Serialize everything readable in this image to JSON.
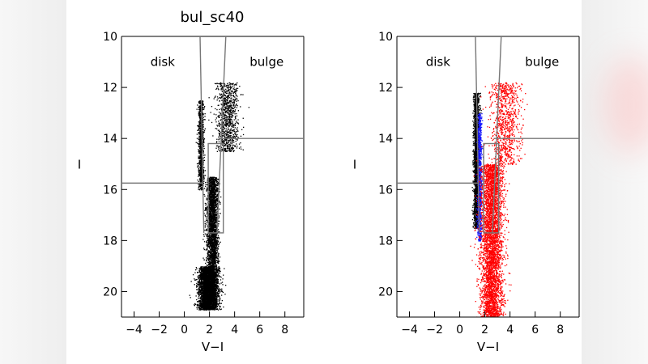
{
  "chart_data": [
    {
      "type": "scatter",
      "title": "bul_sc40",
      "xlabel": "V−I",
      "ylabel": "I",
      "xlim": [
        -5,
        9.5
      ],
      "ylim": [
        21,
        10
      ],
      "y_inverted": true,
      "xticks": [
        -4,
        -2,
        0,
        2,
        4,
        6,
        8
      ],
      "xtick_labels": [
        "−4",
        "−2",
        "0",
        "2",
        "4",
        "6",
        "8"
      ],
      "yticks": [
        10,
        12,
        14,
        16,
        18,
        20
      ],
      "ytick_labels": [
        "10",
        "12",
        "14",
        "16",
        "18",
        "20"
      ],
      "annotations": [
        {
          "text": "disk",
          "x": -2.7,
          "y": 11.0
        },
        {
          "text": "bulge",
          "x": 5.2,
          "y": 11.0
        }
      ],
      "series": [
        {
          "color": "#000000",
          "description_regions": [
            {
              "vi_center": 1.9,
              "vi_spread": 0.8,
              "I_range": [
                19.0,
                20.7
              ],
              "density": "very high"
            },
            {
              "vi_center": 2.2,
              "vi_spread": 0.5,
              "I_range": [
                15.5,
                19.0
              ],
              "density": "high"
            },
            {
              "vi_center": 1.3,
              "vi_spread": 0.25,
              "I_range": [
                12.5,
                16.0
              ],
              "density": "medium"
            },
            {
              "vi_center": 3.4,
              "vi_spread": 1.0,
              "I_range": [
                11.8,
                14.5
              ],
              "density": "medium"
            }
          ]
        }
      ],
      "overlays": {
        "lines": [
          {
            "x": [
              1.25,
              1.55
            ],
            "y": [
              10,
              17.7
            ]
          },
          {
            "x": [
              3.3,
              2.6
            ],
            "y": [
              10,
              17.7
            ]
          },
          {
            "x": [
              -5,
              1.5
            ],
            "y": [
              15.75,
              15.75
            ]
          },
          {
            "x": [
              2.7,
              9.5
            ],
            "y": [
              14.0,
              14.0
            ]
          }
        ],
        "rectangles": [
          {
            "x": [
              1.9,
              3.1
            ],
            "y": [
              14.2,
              17.7
            ]
          }
        ]
      }
    },
    {
      "type": "scatter",
      "title": "",
      "xlabel": "V−I",
      "ylabel": "I",
      "xlim": [
        -5,
        9.5
      ],
      "ylim": [
        21,
        10
      ],
      "y_inverted": true,
      "xticks": [
        -4,
        -2,
        0,
        2,
        4,
        6,
        8
      ],
      "xtick_labels": [
        "−4",
        "−2",
        "0",
        "2",
        "4",
        "6",
        "8"
      ],
      "yticks": [
        10,
        12,
        14,
        16,
        18,
        20
      ],
      "ytick_labels": [
        "10",
        "12",
        "14",
        "16",
        "18",
        "20"
      ],
      "annotations": [
        {
          "text": "disk",
          "x": -2.7,
          "y": 11.0
        },
        {
          "text": "bulge",
          "x": 5.2,
          "y": 11.0
        }
      ],
      "series": [
        {
          "color": "#000000",
          "description_regions": [
            {
              "vi_center": 1.3,
              "vi_spread": 0.25,
              "I_range": [
                12.2,
                17.5
              ],
              "density": "high"
            }
          ]
        },
        {
          "color": "#1a1aff",
          "description_regions": [
            {
              "vi_center": 1.55,
              "vi_spread": 0.2,
              "I_range": [
                13.0,
                18.0
              ],
              "density": "medium"
            }
          ]
        },
        {
          "color": "#ff0000",
          "description_regions": [
            {
              "vi_center": 2.5,
              "vi_spread": 1.0,
              "I_range": [
                15.0,
                21.0
              ],
              "density": "very high"
            },
            {
              "vi_center": 3.6,
              "vi_spread": 1.4,
              "I_range": [
                11.8,
                15.0
              ],
              "density": "medium"
            }
          ]
        }
      ],
      "overlays": {
        "lines": [
          {
            "x": [
              1.25,
              1.55
            ],
            "y": [
              10,
              17.7
            ]
          },
          {
            "x": [
              3.3,
              2.6
            ],
            "y": [
              10,
              17.7
            ]
          },
          {
            "x": [
              -5,
              1.5
            ],
            "y": [
              15.75,
              15.75
            ]
          },
          {
            "x": [
              2.7,
              9.5
            ],
            "y": [
              14.0,
              14.0
            ]
          }
        ],
        "rectangles": [
          {
            "x": [
              1.9,
              3.1
            ],
            "y": [
              14.2,
              17.7
            ]
          }
        ]
      }
    }
  ]
}
